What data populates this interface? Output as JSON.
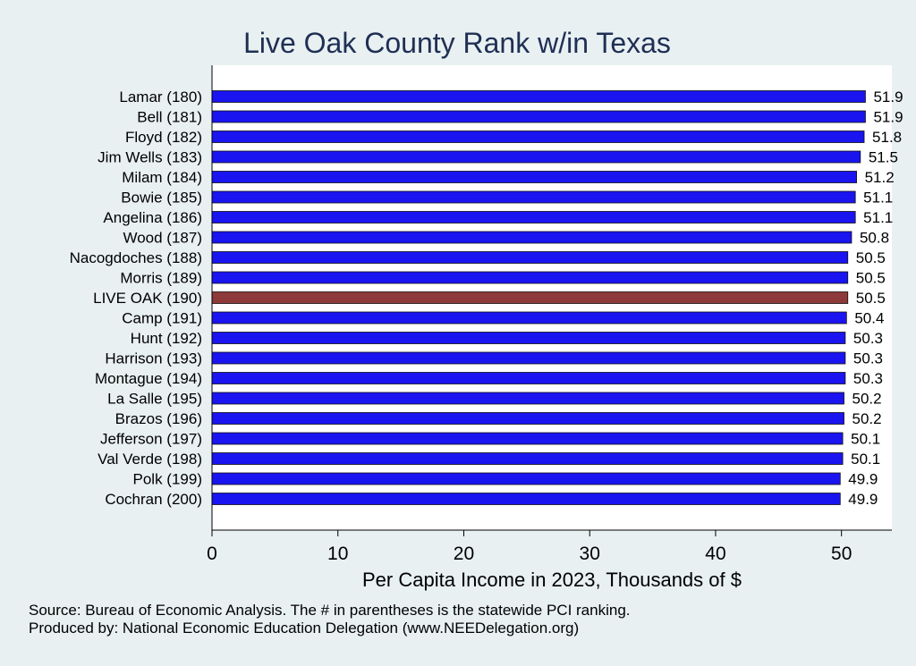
{
  "chart_data": {
    "type": "bar",
    "orientation": "horizontal",
    "title": "Live Oak County Rank w/in Texas",
    "xlabel": "Per Capita Income in 2023, Thousands of $",
    "ylabel": "",
    "xlim": [
      0,
      54
    ],
    "xticks": [
      0,
      10,
      20,
      30,
      40,
      50
    ],
    "categories": [
      "Lamar (180)",
      "Bell (181)",
      "Floyd (182)",
      "Jim Wells (183)",
      "Milam (184)",
      "Bowie (185)",
      "Angelina (186)",
      "Wood (187)",
      "Nacogdoches (188)",
      "Morris (189)",
      "LIVE OAK (190)",
      "Camp (191)",
      "Hunt (192)",
      "Harrison (193)",
      "Montague (194)",
      "La Salle (195)",
      "Brazos (196)",
      "Jefferson (197)",
      "Val Verde (198)",
      "Polk (199)",
      "Cochran (200)"
    ],
    "values": [
      51.9,
      51.9,
      51.8,
      51.5,
      51.2,
      51.1,
      51.1,
      50.8,
      50.5,
      50.5,
      50.5,
      50.4,
      50.3,
      50.3,
      50.3,
      50.2,
      50.2,
      50.1,
      50.1,
      49.9,
      49.9
    ],
    "value_labels": [
      "51.9",
      "51.9",
      "51.8",
      "51.5",
      "51.2",
      "51.1",
      "51.1",
      "50.8",
      "50.5",
      "50.5",
      "50.5",
      "50.4",
      "50.3",
      "50.3",
      "50.3",
      "50.2",
      "50.2",
      "50.1",
      "50.1",
      "49.9",
      "49.9"
    ],
    "highlight": "LIVE OAK (190)",
    "grid": false,
    "colors": {
      "bar": "#1a14f0",
      "highlight": "#8e3a3a",
      "plot_bg": "#ffffff",
      "page_bg": "#e8f0f2",
      "title": "#1f2f54"
    }
  },
  "notes": {
    "source": "Source: Bureau of Economic Analysis. The # in parentheses is the statewide PCI ranking.",
    "produced": "Produced by: National Economic Education Delegation (www.NEEDelegation.org)"
  }
}
